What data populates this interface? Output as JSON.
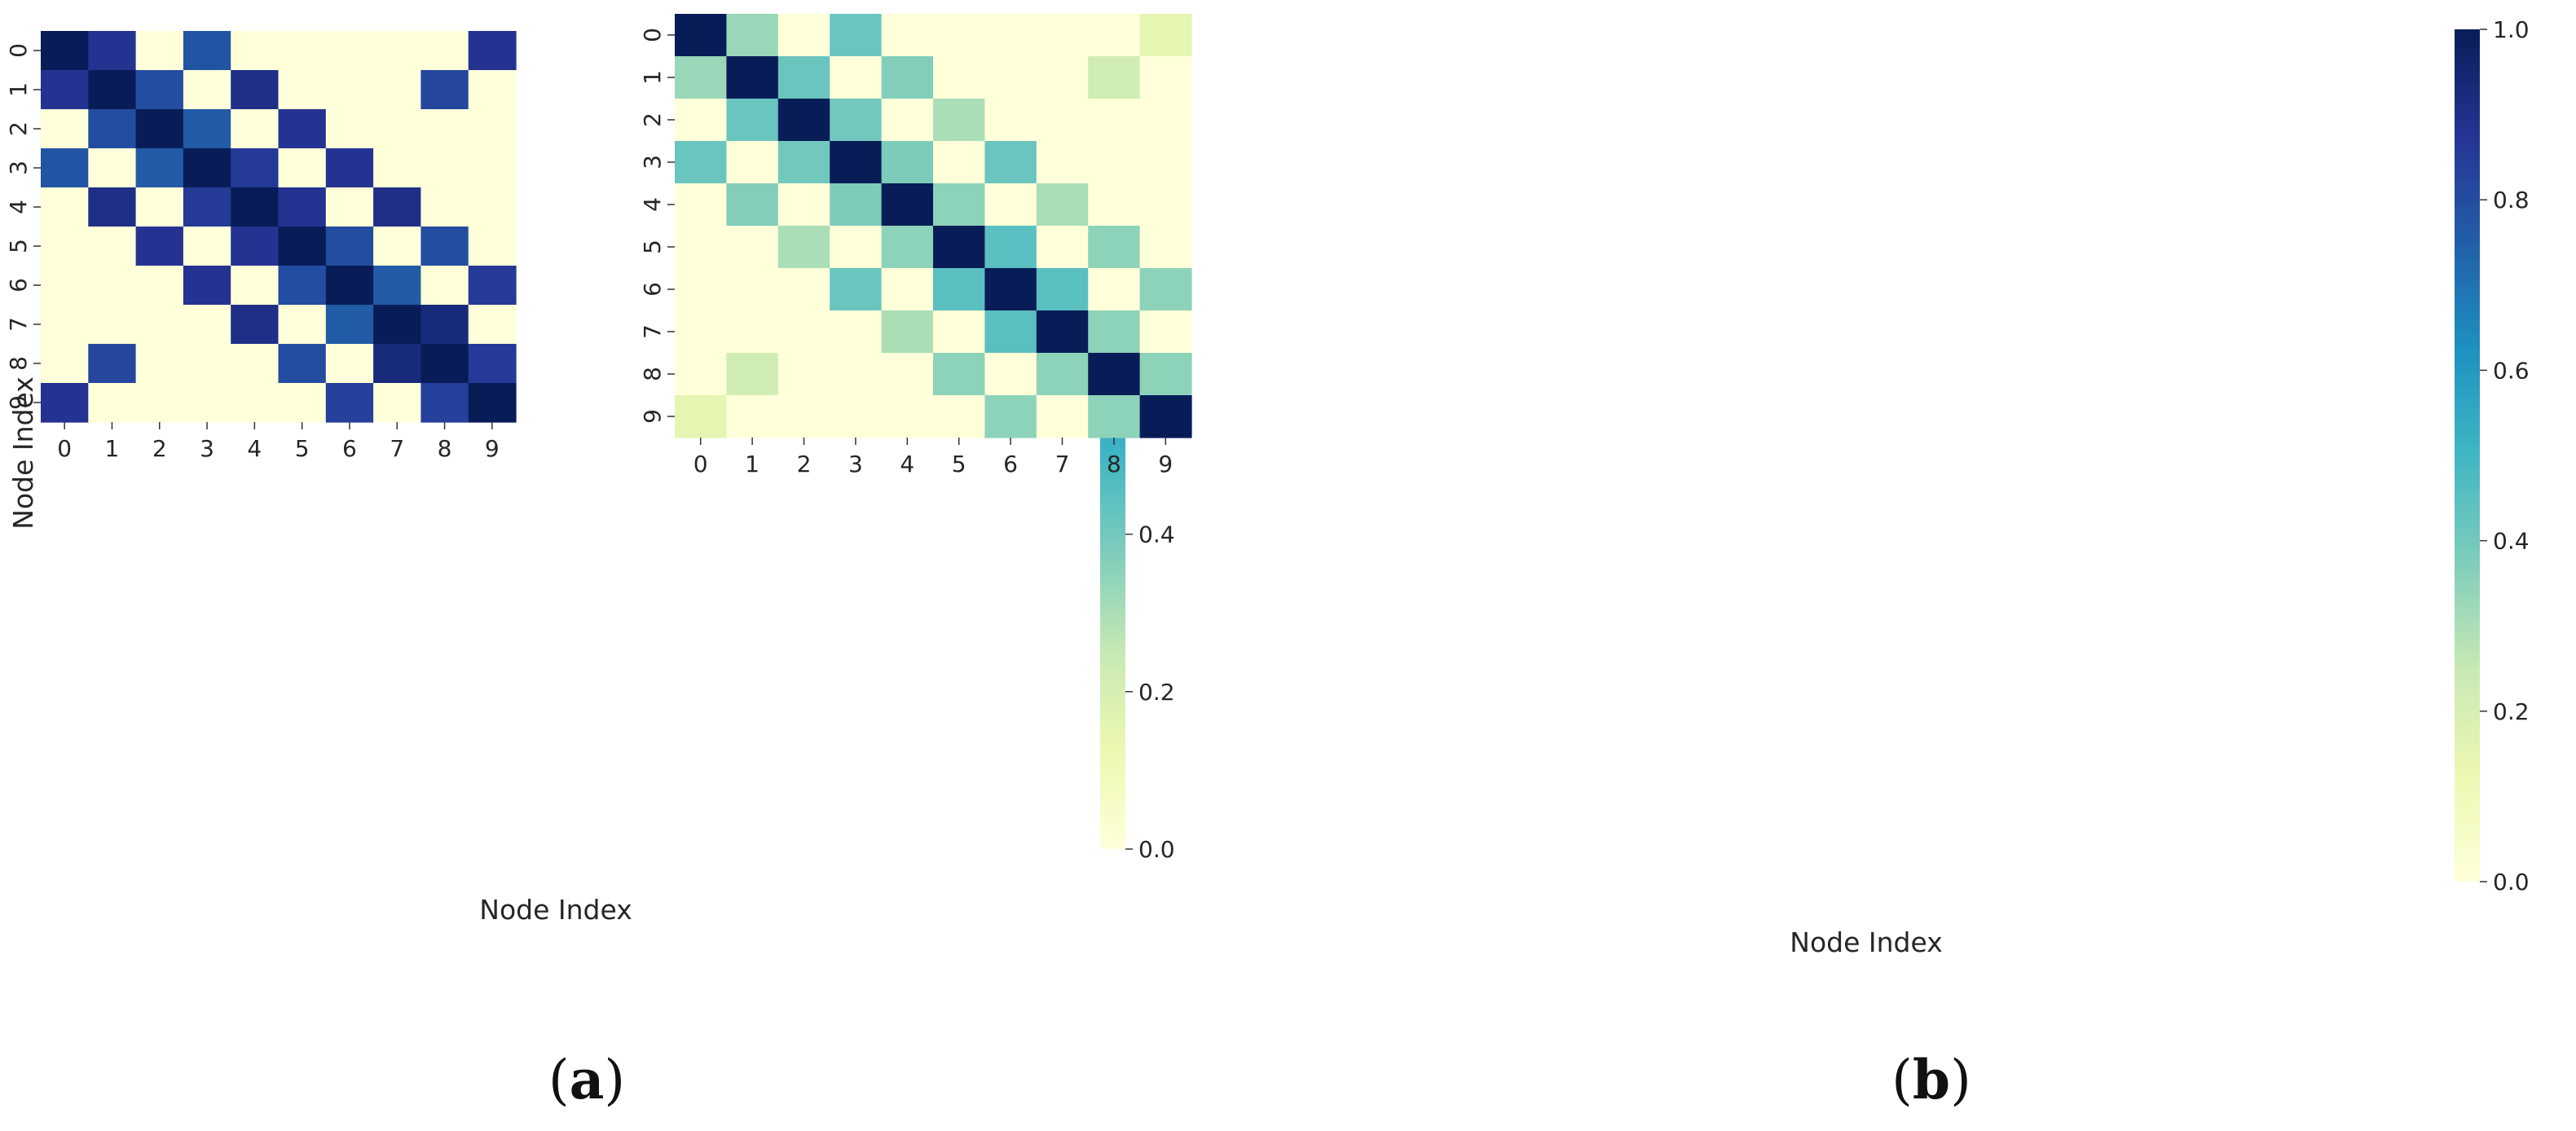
{
  "figure_labels": [
    {
      "open": "(",
      "letter": "a",
      "close": ")"
    },
    {
      "open": "(",
      "letter": "b",
      "close": ")"
    }
  ],
  "chart_data": [
    {
      "type": "heatmap",
      "panel": "a",
      "title": "",
      "xlabel": "Node Index",
      "ylabel": "Node Index",
      "x_categories": [
        "0",
        "1",
        "2",
        "3",
        "4",
        "5",
        "6",
        "7",
        "8",
        "9"
      ],
      "y_categories": [
        "0",
        "1",
        "2",
        "3",
        "4",
        "5",
        "6",
        "7",
        "8",
        "9"
      ],
      "colormap": "YlGnBu",
      "vmin": 0,
      "vmax": 1,
      "colorbar_ticks": [
        "0.0",
        "0.2",
        "0.4",
        "0.6",
        "0.8",
        "1.0"
      ],
      "legend_position": "right",
      "grid": false,
      "values": [
        [
          1.0,
          0.88,
          0.0,
          0.78,
          0.0,
          0.0,
          0.0,
          0.0,
          0.0,
          0.88
        ],
        [
          0.88,
          1.0,
          0.8,
          0.0,
          0.9,
          0.0,
          0.0,
          0.0,
          0.82,
          0.0
        ],
        [
          0.0,
          0.8,
          1.0,
          0.76,
          0.0,
          0.88,
          0.0,
          0.0,
          0.0,
          0.0
        ],
        [
          0.78,
          0.0,
          0.76,
          1.0,
          0.86,
          0.0,
          0.88,
          0.0,
          0.0,
          0.0
        ],
        [
          0.0,
          0.9,
          0.0,
          0.86,
          1.0,
          0.88,
          0.0,
          0.9,
          0.0,
          0.0
        ],
        [
          0.0,
          0.0,
          0.88,
          0.0,
          0.88,
          1.0,
          0.8,
          0.0,
          0.8,
          0.0
        ],
        [
          0.0,
          0.0,
          0.0,
          0.88,
          0.0,
          0.8,
          1.0,
          0.76,
          0.0,
          0.86
        ],
        [
          0.0,
          0.0,
          0.0,
          0.0,
          0.9,
          0.0,
          0.76,
          1.0,
          0.93,
          0.0
        ],
        [
          0.0,
          0.82,
          0.0,
          0.0,
          0.0,
          0.8,
          0.0,
          0.93,
          1.0,
          0.86
        ],
        [
          0.88,
          0.0,
          0.0,
          0.0,
          0.0,
          0.0,
          0.84,
          0.0,
          0.84,
          1.0
        ]
      ]
    },
    {
      "type": "heatmap",
      "panel": "b",
      "title": "",
      "xlabel": "Node Index",
      "ylabel": "",
      "x_categories": [
        "0",
        "1",
        "2",
        "3",
        "4",
        "5",
        "6",
        "7",
        "8",
        "9"
      ],
      "y_categories": [
        "0",
        "1",
        "2",
        "3",
        "4",
        "5",
        "6",
        "7",
        "8",
        "9"
      ],
      "colormap": "YlGnBu",
      "vmin": 0,
      "vmax": 1,
      "colorbar_ticks": [
        "0.0",
        "0.2",
        "0.4",
        "0.6",
        "0.8",
        "1.0"
      ],
      "legend_position": "right",
      "grid": false,
      "values": [
        [
          1.0,
          0.33,
          0.0,
          0.42,
          0.0,
          0.0,
          0.0,
          0.0,
          0.0,
          0.15
        ],
        [
          0.33,
          1.0,
          0.42,
          0.0,
          0.37,
          0.0,
          0.0,
          0.0,
          0.22,
          0.0
        ],
        [
          0.0,
          0.42,
          1.0,
          0.4,
          0.0,
          0.3,
          0.0,
          0.0,
          0.0,
          0.0
        ],
        [
          0.42,
          0.0,
          0.4,
          1.0,
          0.38,
          0.0,
          0.42,
          0.0,
          0.0,
          0.0
        ],
        [
          0.0,
          0.37,
          0.0,
          0.38,
          1.0,
          0.35,
          0.0,
          0.3,
          0.0,
          0.0
        ],
        [
          0.0,
          0.0,
          0.3,
          0.0,
          0.35,
          1.0,
          0.45,
          0.0,
          0.35,
          0.0
        ],
        [
          0.0,
          0.0,
          0.0,
          0.42,
          0.0,
          0.45,
          1.0,
          0.45,
          0.0,
          0.35
        ],
        [
          0.0,
          0.0,
          0.0,
          0.0,
          0.3,
          0.0,
          0.45,
          1.0,
          0.35,
          0.0
        ],
        [
          0.0,
          0.22,
          0.0,
          0.0,
          0.0,
          0.35,
          0.0,
          0.35,
          1.0,
          0.35
        ],
        [
          0.15,
          0.0,
          0.0,
          0.0,
          0.0,
          0.0,
          0.35,
          0.0,
          0.35,
          1.0
        ]
      ]
    }
  ]
}
